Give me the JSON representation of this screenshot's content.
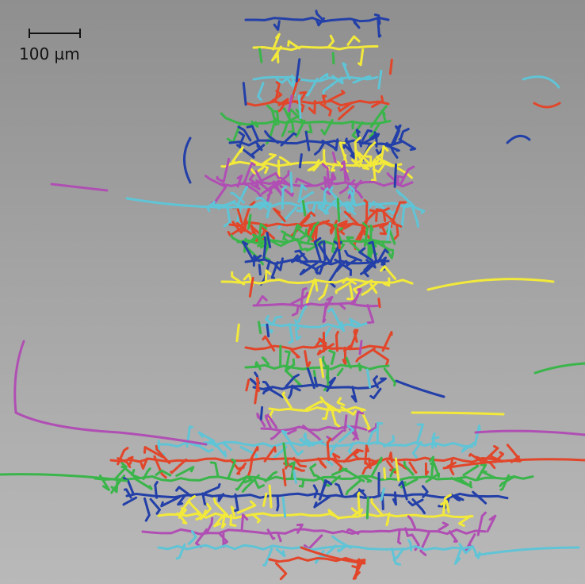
{
  "scale_bar": {
    "label": "100 µm"
  },
  "colors": {
    "background_top": "#8f8f8f",
    "background_bottom": "#b9b9b9",
    "trace_palette": [
      "#3ab54a",
      "#233fa8",
      "#f2e93a",
      "#b04fb3",
      "#5fc4d6",
      "#e2462a"
    ]
  }
}
